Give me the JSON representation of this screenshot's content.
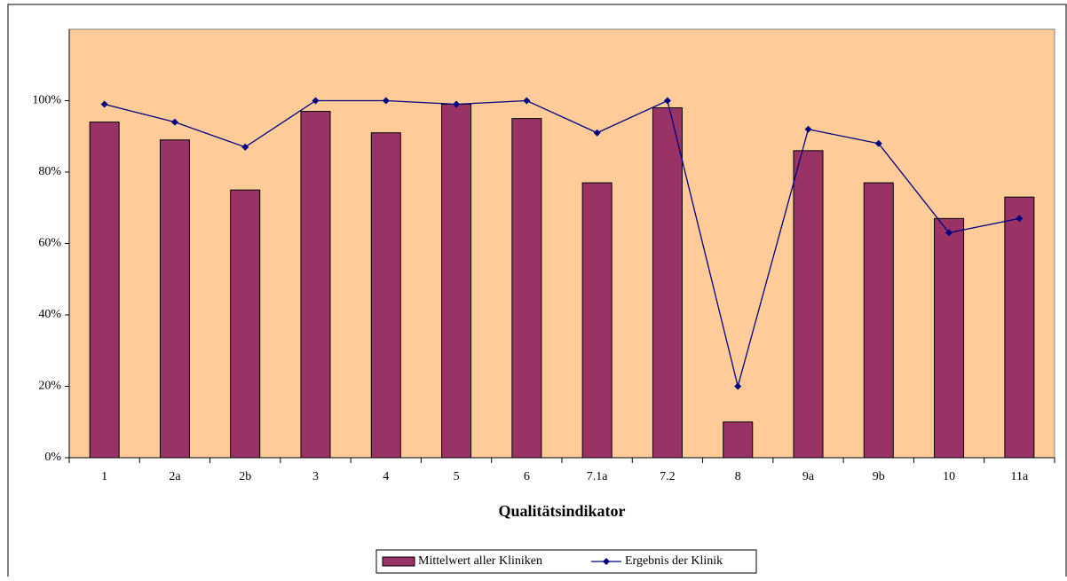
{
  "chart_data": {
    "type": "bar_line",
    "x_label": "Qualitätsindikator",
    "categories": [
      "1",
      "2a",
      "2b",
      "3",
      "4",
      "5",
      "6",
      "7.1a",
      "7.2",
      "8",
      "9a",
      "9b",
      "10",
      "11a"
    ],
    "series": [
      {
        "name": "Mittelwert aller Kliniken",
        "type": "bar",
        "color": "#993366",
        "values": [
          94,
          89,
          75,
          97,
          91,
          99,
          95,
          77,
          98,
          10,
          86,
          77,
          67,
          73
        ]
      },
      {
        "name": "Ergebnis der Klinik",
        "type": "line",
        "color": "#000080",
        "values": [
          99,
          94,
          87,
          100,
          100,
          99,
          100,
          91,
          100,
          20,
          92,
          88,
          63,
          67
        ]
      }
    ],
    "ylim": [
      0,
      120
    ],
    "yticks": [
      {
        "value": 0,
        "label": "0%"
      },
      {
        "value": 20,
        "label": "20%"
      },
      {
        "value": 40,
        "label": "40%"
      },
      {
        "value": 60,
        "label": "60%"
      },
      {
        "value": 80,
        "label": "80%"
      },
      {
        "value": 100,
        "label": "100%"
      }
    ],
    "plot_background": "#ffcc99",
    "legend": "bottom"
  }
}
